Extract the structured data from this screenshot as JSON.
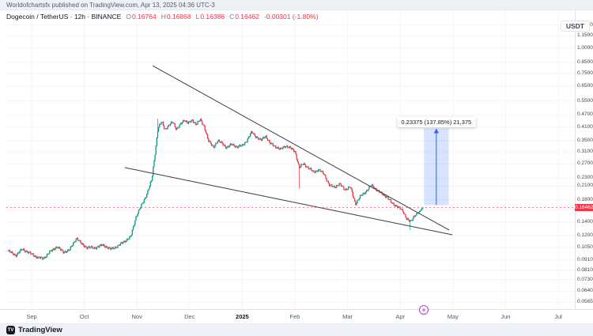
{
  "attribution": "Worldofchartsfx published on TradingView.com, Apr 13, 2025 04:36 UTC-3",
  "header": {
    "title": "Dogecoin / TetherUS · 12h · BINANCE",
    "o_label": "O",
    "o": "0.16764",
    "h_label": "H",
    "h": "0.16868",
    "l_label": "L",
    "l": "0.16386",
    "c_label": "C",
    "c": "0.16462",
    "change": "-0.00301 (-1.80%)"
  },
  "axis_right": {
    "currency": "USDT",
    "last_price": "0.16462"
  },
  "footer": {
    "brand": "TradingView",
    "logo_text": "TV"
  },
  "chart_data": {
    "type": "candlestick",
    "title": "Dogecoin / TetherUS",
    "interval": "12h",
    "exchange": "BINANCE",
    "scale": "log",
    "unit": "USDT",
    "last_ohlc": {
      "o": 0.16764,
      "h": 0.16868,
      "l": 0.16386,
      "c": 0.16462,
      "change": -0.00301,
      "change_pct": -1.8
    },
    "last_price": 0.16462,
    "y_axis": {
      "ticks": [
        1.3,
        1.15,
        1.0,
        0.85,
        0.75,
        0.65,
        0.55,
        0.47,
        0.41,
        0.35,
        0.31,
        0.27,
        0.23,
        0.21,
        0.18,
        0.16,
        0.14,
        0.12,
        0.105,
        0.091,
        0.081,
        0.073,
        0.064,
        0.0565
      ]
    },
    "x_axis": {
      "months": [
        {
          "label": "Sep",
          "m": 0
        },
        {
          "label": "Oct",
          "m": 1
        },
        {
          "label": "Nov",
          "m": 2
        },
        {
          "label": "Dec",
          "m": 3
        },
        {
          "label": "2025",
          "m": 4,
          "strong": true
        },
        {
          "label": "Feb",
          "m": 5
        },
        {
          "label": "Mar",
          "m": 6
        },
        {
          "label": "Apr",
          "m": 7
        },
        {
          "label": "May",
          "m": 8
        },
        {
          "label": "Jun",
          "m": 9
        },
        {
          "label": "Jul",
          "m": 10
        }
      ]
    },
    "bars_per_month": 58,
    "price_path_anchors": [
      [
        -0.45,
        0.101
      ],
      [
        -0.3,
        0.096
      ],
      [
        -0.18,
        0.103
      ],
      [
        -0.05,
        0.099
      ],
      [
        0.1,
        0.094
      ],
      [
        0.22,
        0.0925
      ],
      [
        0.35,
        0.1
      ],
      [
        0.48,
        0.106
      ],
      [
        0.6,
        0.0995
      ],
      [
        0.72,
        0.102
      ],
      [
        0.85,
        0.117
      ],
      [
        0.95,
        0.109
      ],
      [
        1.05,
        0.105
      ],
      [
        1.2,
        0.1045
      ],
      [
        1.35,
        0.108
      ],
      [
        1.5,
        0.103
      ],
      [
        1.62,
        0.106
      ],
      [
        1.75,
        0.112
      ],
      [
        1.88,
        0.118
      ],
      [
        1.98,
        0.148
      ],
      [
        2.08,
        0.168
      ],
      [
        2.18,
        0.19
      ],
      [
        2.28,
        0.225
      ],
      [
        2.34,
        0.3
      ],
      [
        2.4,
        0.405
      ],
      [
        2.47,
        0.435
      ],
      [
        2.53,
        0.4
      ],
      [
        2.6,
        0.415
      ],
      [
        2.68,
        0.435
      ],
      [
        2.75,
        0.4
      ],
      [
        2.82,
        0.42
      ],
      [
        2.9,
        0.445
      ],
      [
        2.97,
        0.43
      ],
      [
        3.05,
        0.44
      ],
      [
        3.12,
        0.425
      ],
      [
        3.2,
        0.445
      ],
      [
        3.28,
        0.41
      ],
      [
        3.36,
        0.35
      ],
      [
        3.45,
        0.325
      ],
      [
        3.53,
        0.352
      ],
      [
        3.62,
        0.34
      ],
      [
        3.7,
        0.325
      ],
      [
        3.8,
        0.337
      ],
      [
        3.9,
        0.328
      ],
      [
        4.0,
        0.332
      ],
      [
        4.08,
        0.35
      ],
      [
        4.18,
        0.388
      ],
      [
        4.26,
        0.368
      ],
      [
        4.35,
        0.352
      ],
      [
        4.44,
        0.372
      ],
      [
        4.52,
        0.342
      ],
      [
        4.62,
        0.33
      ],
      [
        4.72,
        0.318
      ],
      [
        4.82,
        0.332
      ],
      [
        4.92,
        0.322
      ],
      [
        5.0,
        0.312
      ],
      [
        5.08,
        0.258
      ],
      [
        5.16,
        0.272
      ],
      [
        5.25,
        0.258
      ],
      [
        5.35,
        0.247
      ],
      [
        5.45,
        0.252
      ],
      [
        5.55,
        0.242
      ],
      [
        5.65,
        0.212
      ],
      [
        5.75,
        0.208
      ],
      [
        5.85,
        0.215
      ],
      [
        5.95,
        0.202
      ],
      [
        6.05,
        0.208
      ],
      [
        6.15,
        0.172
      ],
      [
        6.25,
        0.188
      ],
      [
        6.35,
        0.198
      ],
      [
        6.45,
        0.212
      ],
      [
        6.55,
        0.202
      ],
      [
        6.65,
        0.192
      ],
      [
        6.75,
        0.186
      ],
      [
        6.85,
        0.172
      ],
      [
        6.95,
        0.167
      ],
      [
        7.05,
        0.158
      ],
      [
        7.12,
        0.146
      ],
      [
        7.2,
        0.14
      ],
      [
        7.28,
        0.152
      ],
      [
        7.36,
        0.157
      ],
      [
        7.43,
        0.16462
      ]
    ],
    "special_wicks": [
      {
        "m": 5.08,
        "low": 0.205
      },
      {
        "m": 7.18,
        "low": 0.128
      },
      {
        "m": 2.4,
        "high": 0.45
      }
    ],
    "trendlines": [
      {
        "m1": 2.3,
        "p1": 0.82,
        "m2": 7.93,
        "p2": 0.1278
      },
      {
        "m1": 1.77,
        "p1": 0.259,
        "m2": 7.99,
        "p2": 0.1211
      }
    ],
    "measure_tool": {
      "m1": 7.45,
      "m2": 7.92,
      "p_from": 0.16957,
      "p_to": 0.40332,
      "label": "0.23375 (137.85%) 21,375"
    },
    "event_marker": {
      "m": 7.43
    },
    "colors": {
      "up": "#089981",
      "down": "#f23645",
      "trendline": "#3a3f4a",
      "measure_fill": "rgba(41,98,255,0.18)",
      "measure_line": "#2962ff",
      "grid": "#f3f5f9",
      "price_line": "#f23645"
    }
  }
}
